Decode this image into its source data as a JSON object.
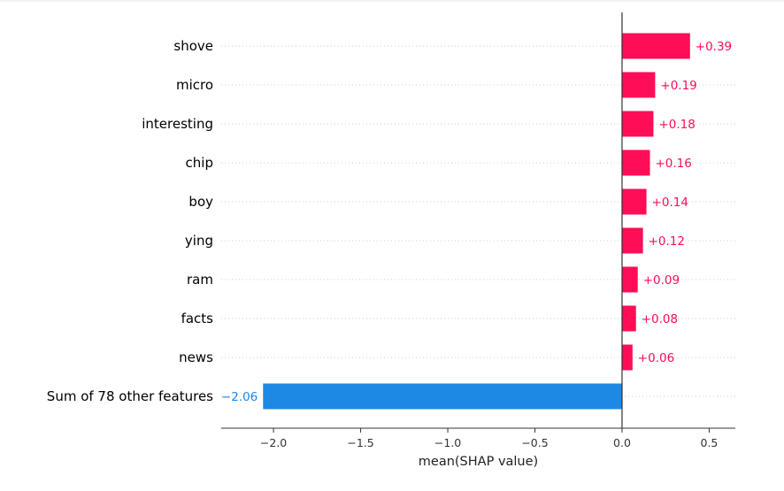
{
  "chart_data": {
    "type": "bar",
    "orientation": "horizontal",
    "title": "",
    "xlabel": "mean(SHAP value)",
    "ylabel": "",
    "xlim": [
      -2.3,
      0.65
    ],
    "xticks": [
      -2.0,
      -1.5,
      -1.0,
      -0.5,
      0.0,
      0.5
    ],
    "xtick_labels": [
      "−2.0",
      "−1.5",
      "−1.0",
      "−0.5",
      "0.0",
      "0.5"
    ],
    "grid": "dotted horizontal guides per row",
    "categories": [
      "shove",
      "micro",
      "interesting",
      "chip",
      "boy",
      "ying",
      "ram",
      "facts",
      "news",
      "Sum of 78 other features"
    ],
    "values": [
      0.39,
      0.19,
      0.18,
      0.16,
      0.14,
      0.12,
      0.09,
      0.08,
      0.06,
      -2.06
    ],
    "value_labels": [
      "+0.39",
      "+0.19",
      "+0.18",
      "+0.16",
      "+0.14",
      "+0.12",
      "+0.09",
      "+0.08",
      "+0.06",
      "−2.06"
    ],
    "colors": {
      "positive": "#ff0d57",
      "negative": "#1e88e5",
      "axis": "#333333",
      "grid": "#cccccc"
    }
  }
}
